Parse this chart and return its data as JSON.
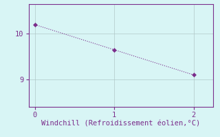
{
  "x": [
    0,
    1,
    2
  ],
  "y": [
    10.2,
    9.65,
    9.1
  ],
  "line_color": "#7B2D8B",
  "marker": "D",
  "marker_size": 3,
  "bg_color": "#d8f5f5",
  "plot_bg_color": "#d8f5f5",
  "grid_color": "#b0c8c8",
  "tick_color": "#7B2D8B",
  "label_color": "#7B2D8B",
  "xlabel": "Windchill (Refroidissement éolien,°C)",
  "xlabel_fontsize": 7.5,
  "yticks": [
    9,
    10
  ],
  "xticks": [
    0,
    1,
    2
  ],
  "xlim": [
    -0.08,
    2.25
  ],
  "ylim": [
    8.4,
    10.65
  ],
  "tick_fontsize": 7.5
}
